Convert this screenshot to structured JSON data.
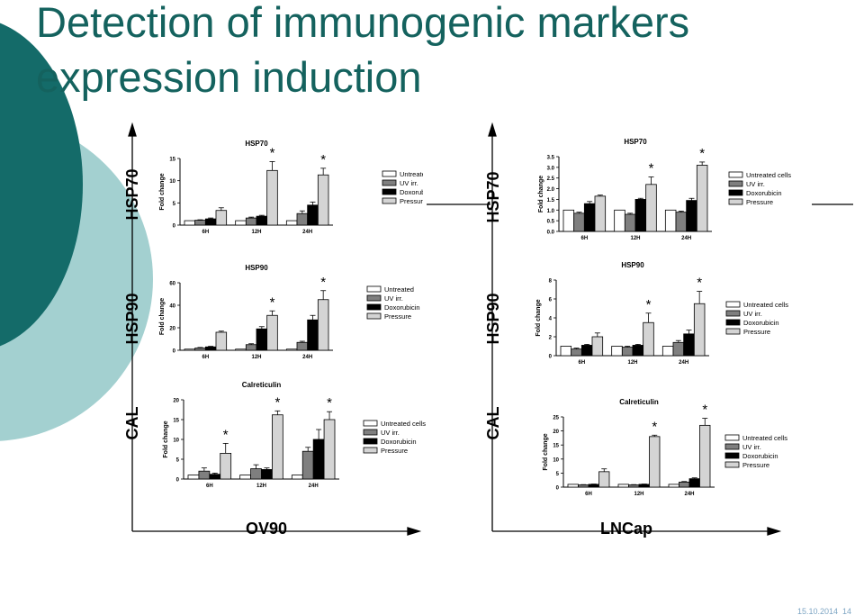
{
  "slide": {
    "title_line_1": "Detection of  immunogenic markers",
    "title_line_2": "expression induction",
    "date": "15.10.2014",
    "page_number": "14"
  },
  "axis_labels": {
    "left_rows": [
      "HSP70",
      "HSP90",
      "CAL"
    ],
    "right_rows": [
      "HSP70",
      "HSP90",
      "CAL"
    ],
    "bottom_left": "OV90",
    "bottom_right": "LNCap"
  },
  "colors": {
    "title": "#14625e",
    "deco_dark": "#146b69",
    "deco_light": "#a3d0d0",
    "untreated": "#ffffff",
    "uv": "#7f7f7f",
    "doxorubicin": "#000000",
    "pressure": "#d4d4d4"
  },
  "chart_data": [
    {
      "type": "bar",
      "title": "HSP70",
      "ylabel": "Fold change",
      "categories": [
        "6H",
        "12H",
        "24H"
      ],
      "ylim": [
        0,
        15
      ],
      "yticks": [
        "0",
        "5",
        "10",
        "15"
      ],
      "series": [
        {
          "name": "Untreated",
          "values": [
            1,
            1,
            1
          ]
        },
        {
          "name": "UV irr.",
          "values": [
            1.1,
            1.6,
            2.6
          ]
        },
        {
          "name": "Doxorubicin",
          "values": [
            1.4,
            2.0,
            4.5
          ]
        },
        {
          "name": "Pressure",
          "values": [
            3.3,
            12.3,
            11.3
          ]
        }
      ],
      "errors": [
        [
          0,
          0,
          0
        ],
        [
          0.1,
          0.2,
          0.6
        ],
        [
          0.2,
          0.2,
          0.7
        ],
        [
          0.6,
          2.0,
          1.5
        ]
      ],
      "significance": [
        [
          3,
          1
        ],
        [
          3,
          2
        ]
      ],
      "star_label": "*",
      "grid": false,
      "legend_position": "right"
    },
    {
      "type": "bar",
      "title": "HSP90",
      "ylabel": "Fold change",
      "categories": [
        "6H",
        "12H",
        "24H"
      ],
      "ylim": [
        0,
        60
      ],
      "yticks": [
        "0",
        "20",
        "40",
        "60"
      ],
      "series": [
        {
          "name": "Untreated",
          "values": [
            1,
            1,
            1
          ]
        },
        {
          "name": "UV irr.",
          "values": [
            2,
            5,
            7
          ]
        },
        {
          "name": "Doxorubicin",
          "values": [
            3,
            19,
            27
          ]
        },
        {
          "name": "Pressure",
          "values": [
            16,
            31,
            45
          ]
        }
      ],
      "errors": [
        [
          0,
          0,
          0
        ],
        [
          0.5,
          0.8,
          1
        ],
        [
          0.5,
          2,
          4
        ],
        [
          1,
          4,
          8
        ]
      ],
      "significance": [
        [
          3,
          1
        ],
        [
          3,
          2
        ]
      ],
      "star_label": "*",
      "grid": false,
      "legend_position": "right"
    },
    {
      "type": "bar",
      "title": "Calreticulin",
      "ylabel": "Fold change",
      "categories": [
        "6H",
        "12H",
        "24H"
      ],
      "ylim": [
        0,
        20
      ],
      "yticks": [
        "0",
        "5",
        "10",
        "15",
        "20"
      ],
      "series": [
        {
          "name": "Untreated cells",
          "values": [
            1,
            1,
            1
          ]
        },
        {
          "name": "UV irr.",
          "values": [
            2,
            2.6,
            7
          ]
        },
        {
          "name": "Doxorubicin",
          "values": [
            1.2,
            2.4,
            10
          ]
        },
        {
          "name": "Pressure",
          "values": [
            6.5,
            16.2,
            15
          ]
        }
      ],
      "errors": [
        [
          0,
          0,
          0
        ],
        [
          0.8,
          1,
          1
        ],
        [
          0.3,
          0.4,
          2.5
        ],
        [
          2.5,
          1,
          2
        ]
      ],
      "significance": [
        [
          3,
          0
        ],
        [
          3,
          1
        ],
        [
          3,
          2
        ]
      ],
      "star_label": "*",
      "grid": false,
      "legend_position": "right"
    },
    {
      "type": "bar",
      "title": "HSP70",
      "ylabel": "Fold change",
      "categories": [
        "6H",
        "12H",
        "24H"
      ],
      "ylim": [
        0,
        3.5
      ],
      "yticks": [
        "0.0",
        "0.5",
        "1.0",
        "1.5",
        "2.0",
        "2.5",
        "3.0",
        "3.5"
      ],
      "series": [
        {
          "name": "Untreated cells",
          "values": [
            1,
            1,
            1
          ]
        },
        {
          "name": "UV irr.",
          "values": [
            0.85,
            0.8,
            0.9
          ]
        },
        {
          "name": "Doxorubicin",
          "values": [
            1.3,
            1.5,
            1.45
          ]
        },
        {
          "name": "Pressure",
          "values": [
            1.65,
            2.2,
            3.1
          ]
        }
      ],
      "errors": [
        [
          0,
          0,
          0
        ],
        [
          0.05,
          0.05,
          0.05
        ],
        [
          0.1,
          0.05,
          0.1
        ],
        [
          0.05,
          0.35,
          0.15
        ]
      ],
      "significance": [
        [
          3,
          1
        ],
        [
          3,
          2
        ]
      ],
      "star_label": "*",
      "grid": false,
      "legend_position": "right"
    },
    {
      "type": "bar",
      "title": "HSP90",
      "ylabel": "Fold change",
      "categories": [
        "6H",
        "12H",
        "24H"
      ],
      "ylim": [
        0,
        8
      ],
      "yticks": [
        "0",
        "2",
        "4",
        "6",
        "8"
      ],
      "series": [
        {
          "name": "Untreated cells",
          "values": [
            1,
            1,
            1
          ]
        },
        {
          "name": "UV irr.",
          "values": [
            0.7,
            0.9,
            1.4
          ]
        },
        {
          "name": "Doxorubicin",
          "values": [
            1.1,
            1.1,
            2.3
          ]
        },
        {
          "name": "Pressure",
          "values": [
            2.0,
            3.5,
            5.5
          ]
        }
      ],
      "errors": [
        [
          0,
          0,
          0
        ],
        [
          0.1,
          0.1,
          0.2
        ],
        [
          0.1,
          0.1,
          0.4
        ],
        [
          0.4,
          1.0,
          1.3
        ]
      ],
      "significance": [
        [
          3,
          1
        ],
        [
          3,
          2
        ]
      ],
      "star_label": "*",
      "grid": false,
      "legend_position": "right"
    },
    {
      "type": "bar",
      "title": "Calreticulin",
      "ylabel": "Fold change",
      "categories": [
        "6H",
        "12H",
        "24H"
      ],
      "ylim": [
        0,
        25
      ],
      "yticks": [
        "0",
        "5",
        "10",
        "15",
        "20",
        "25"
      ],
      "series": [
        {
          "name": "Untreated cells",
          "values": [
            1,
            1,
            1
          ]
        },
        {
          "name": "UV irr.",
          "values": [
            0.8,
            0.8,
            1.8
          ]
        },
        {
          "name": "Doxorubicin",
          "values": [
            1,
            1,
            3
          ]
        },
        {
          "name": "Pressure",
          "values": [
            5.5,
            18,
            22
          ]
        }
      ],
      "errors": [
        [
          0,
          0,
          0
        ],
        [
          0.1,
          0.1,
          0.2
        ],
        [
          0.1,
          0.1,
          0.3
        ],
        [
          1,
          0.5,
          2.5
        ]
      ],
      "significance": [
        [
          3,
          1
        ],
        [
          3,
          2
        ]
      ],
      "star_label": "*",
      "grid": false,
      "legend_position": "right"
    }
  ]
}
